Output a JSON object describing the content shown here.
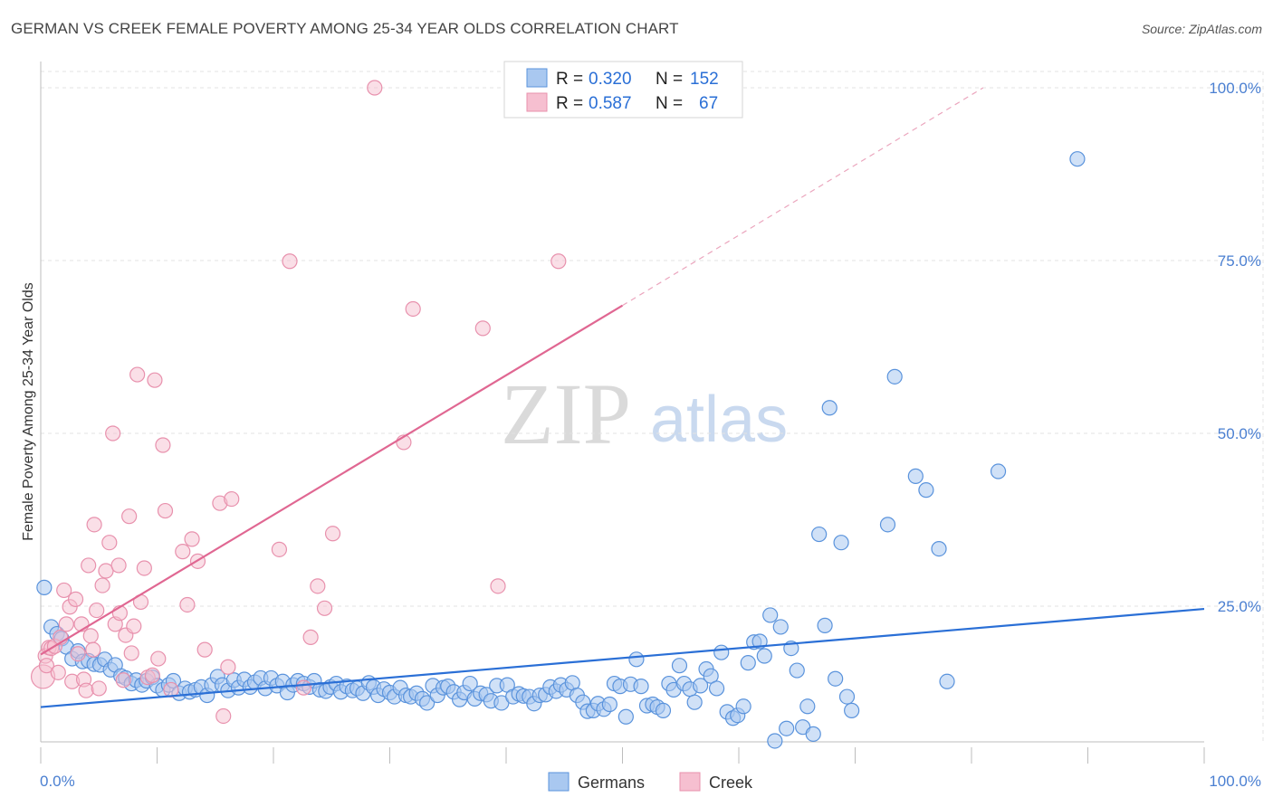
{
  "header": {
    "title": "GERMAN VS CREEK FEMALE POVERTY AMONG 25-34 YEAR OLDS CORRELATION CHART",
    "source": "Source: ZipAtlas.com"
  },
  "watermark": {
    "zip": "ZIP",
    "atlas": "atlas"
  },
  "colors": {
    "germans_fill": "#a9c8f0",
    "germans_stroke": "#5a93dc",
    "germans_line": "#2a6fd6",
    "creek_fill": "#f6bfd0",
    "creek_stroke": "#e891ad",
    "creek_line": "#e06792",
    "axis_text": "#4a7fd1",
    "grid": "#e3e3e3"
  },
  "legend": {
    "r_label": "R =",
    "n_label": "N =",
    "rows": [
      {
        "series": "Germans",
        "r": "0.320",
        "n": "152"
      },
      {
        "series": "Creek",
        "r": "0.587",
        "n": "67"
      }
    ]
  },
  "chart_data": {
    "type": "scatter",
    "title": "GERMAN VS CREEK FEMALE POVERTY AMONG 25-34 YEAR OLDS CORRELATION CHART",
    "xlabel": "",
    "ylabel": "Female Poverty Among 25-34 Year Olds",
    "xlim": [
      0,
      100
    ],
    "ylim": [
      0,
      100
    ],
    "x_tick_labels": [
      "0.0%",
      "100.0%"
    ],
    "y_tick_labels": [
      "25.0%",
      "50.0%",
      "75.0%",
      "100.0%"
    ],
    "y_ticks": [
      25,
      50,
      75,
      100
    ],
    "grid": true,
    "legend_position": "top-center",
    "series": [
      {
        "name": "Germans",
        "regression": {
          "x0": 0,
          "y0": 10.4,
          "x1": 100,
          "y1": 24.6
        },
        "points": [
          [
            0.3,
            27.7
          ],
          [
            0.9,
            22.0
          ],
          [
            1.4,
            21.0
          ],
          [
            1.8,
            20.3
          ],
          [
            2.2,
            19.1
          ],
          [
            2.7,
            17.4
          ],
          [
            3.2,
            18.5
          ],
          [
            3.6,
            17.0
          ],
          [
            4.1,
            17.1
          ],
          [
            4.6,
            16.6
          ],
          [
            5.1,
            16.5
          ],
          [
            5.5,
            17.3
          ],
          [
            6.0,
            15.8
          ],
          [
            6.4,
            16.5
          ],
          [
            6.9,
            14.9
          ],
          [
            7.3,
            14.6
          ],
          [
            7.8,
            13.8
          ],
          [
            8.2,
            14.3
          ],
          [
            8.7,
            13.6
          ],
          [
            9.1,
            14.2
          ],
          [
            9.6,
            14.7
          ],
          [
            10.0,
            13.5
          ],
          [
            10.5,
            12.9
          ],
          [
            11.0,
            13.6
          ],
          [
            11.4,
            14.2
          ],
          [
            11.9,
            12.4
          ],
          [
            12.4,
            13.1
          ],
          [
            12.8,
            12.6
          ],
          [
            13.3,
            12.9
          ],
          [
            13.8,
            13.3
          ],
          [
            14.3,
            12.1
          ],
          [
            14.7,
            13.6
          ],
          [
            15.2,
            14.8
          ],
          [
            15.6,
            13.6
          ],
          [
            16.1,
            12.8
          ],
          [
            16.6,
            14.3
          ],
          [
            17.0,
            13.2
          ],
          [
            17.5,
            14.4
          ],
          [
            18.0,
            13.3
          ],
          [
            18.4,
            14.0
          ],
          [
            18.9,
            14.6
          ],
          [
            19.3,
            13.1
          ],
          [
            19.8,
            14.6
          ],
          [
            20.3,
            13.5
          ],
          [
            20.8,
            14.1
          ],
          [
            21.2,
            12.5
          ],
          [
            21.7,
            13.6
          ],
          [
            22.1,
            14.2
          ],
          [
            22.6,
            13.8
          ],
          [
            23.1,
            13.3
          ],
          [
            23.5,
            14.2
          ],
          [
            24.0,
            12.9
          ],
          [
            24.5,
            12.7
          ],
          [
            24.9,
            13.3
          ],
          [
            25.4,
            13.8
          ],
          [
            25.8,
            12.6
          ],
          [
            26.3,
            13.4
          ],
          [
            26.8,
            12.8
          ],
          [
            27.2,
            13.1
          ],
          [
            27.7,
            12.4
          ],
          [
            28.2,
            13.9
          ],
          [
            28.6,
            13.3
          ],
          [
            29.0,
            12.1
          ],
          [
            29.5,
            13.0
          ],
          [
            30.0,
            12.5
          ],
          [
            30.4,
            11.9
          ],
          [
            30.9,
            13.2
          ],
          [
            31.4,
            12.1
          ],
          [
            31.8,
            11.9
          ],
          [
            32.3,
            12.4
          ],
          [
            32.8,
            11.6
          ],
          [
            33.2,
            11.0
          ],
          [
            33.7,
            13.5
          ],
          [
            34.1,
            12.1
          ],
          [
            34.6,
            13.2
          ],
          [
            35.0,
            13.4
          ],
          [
            35.5,
            12.6
          ],
          [
            36.0,
            11.5
          ],
          [
            36.4,
            12.5
          ],
          [
            36.9,
            13.8
          ],
          [
            37.3,
            11.6
          ],
          [
            37.8,
            12.4
          ],
          [
            38.3,
            12.2
          ],
          [
            38.7,
            11.3
          ],
          [
            39.2,
            13.5
          ],
          [
            39.6,
            11.0
          ],
          [
            40.1,
            13.6
          ],
          [
            40.6,
            11.9
          ],
          [
            41.1,
            12.3
          ],
          [
            41.5,
            12.0
          ],
          [
            42.0,
            11.9
          ],
          [
            42.4,
            10.9
          ],
          [
            42.9,
            12.1
          ],
          [
            43.4,
            12.2
          ],
          [
            43.8,
            13.3
          ],
          [
            44.3,
            12.7
          ],
          [
            44.7,
            13.6
          ],
          [
            45.2,
            12.9
          ],
          [
            45.7,
            13.9
          ],
          [
            46.1,
            12.1
          ],
          [
            46.6,
            11.1
          ],
          [
            47.0,
            9.8
          ],
          [
            47.5,
            9.9
          ],
          [
            47.9,
            10.9
          ],
          [
            48.4,
            10.1
          ],
          [
            48.9,
            10.8
          ],
          [
            49.3,
            13.8
          ],
          [
            49.8,
            13.4
          ],
          [
            50.3,
            9.0
          ],
          [
            50.7,
            13.7
          ],
          [
            51.2,
            17.3
          ],
          [
            51.6,
            13.4
          ],
          [
            52.1,
            10.6
          ],
          [
            52.6,
            10.8
          ],
          [
            53.0,
            10.4
          ],
          [
            53.5,
            9.9
          ],
          [
            54.0,
            13.8
          ],
          [
            54.4,
            12.9
          ],
          [
            54.9,
            16.4
          ],
          [
            55.3,
            13.8
          ],
          [
            55.8,
            13.0
          ],
          [
            56.2,
            11.1
          ],
          [
            56.7,
            13.5
          ],
          [
            57.2,
            15.9
          ],
          [
            57.6,
            14.9
          ],
          [
            58.1,
            13.1
          ],
          [
            58.5,
            18.3
          ],
          [
            59.0,
            9.7
          ],
          [
            59.5,
            8.8
          ],
          [
            59.9,
            9.2
          ],
          [
            60.4,
            10.5
          ],
          [
            60.8,
            16.8
          ],
          [
            61.3,
            19.8
          ],
          [
            61.8,
            19.9
          ],
          [
            62.2,
            17.8
          ],
          [
            62.7,
            23.7
          ],
          [
            63.1,
            5.5
          ],
          [
            63.6,
            22.0
          ],
          [
            64.1,
            7.3
          ],
          [
            64.5,
            18.9
          ],
          [
            65.0,
            15.7
          ],
          [
            65.5,
            7.5
          ],
          [
            65.9,
            10.5
          ],
          [
            66.4,
            6.5
          ],
          [
            66.9,
            35.4
          ],
          [
            67.4,
            22.2
          ],
          [
            67.8,
            53.7
          ],
          [
            68.3,
            14.5
          ],
          [
            68.8,
            34.2
          ],
          [
            69.3,
            11.9
          ],
          [
            69.7,
            9.9
          ],
          [
            72.8,
            36.8
          ],
          [
            73.4,
            58.2
          ],
          [
            75.2,
            43.8
          ],
          [
            76.1,
            41.8
          ],
          [
            77.2,
            33.3
          ],
          [
            77.9,
            14.1
          ],
          [
            82.3,
            44.5
          ],
          [
            89.1,
            89.7
          ]
        ]
      },
      {
        "name": "Creek",
        "regression": {
          "x0": 0,
          "y0": 18.0,
          "x1": 50,
          "y1": 68.5,
          "dash_x1": 81,
          "dash_y1": 100
        },
        "points": [
          [
            0.2,
            14.8
          ],
          [
            0.4,
            17.8
          ],
          [
            0.5,
            16.4
          ],
          [
            0.7,
            19.0
          ],
          [
            0.9,
            18.9
          ],
          [
            1.2,
            19.2
          ],
          [
            1.5,
            15.4
          ],
          [
            1.7,
            20.5
          ],
          [
            2.0,
            27.3
          ],
          [
            2.2,
            22.4
          ],
          [
            2.5,
            24.9
          ],
          [
            2.7,
            14.1
          ],
          [
            3.0,
            26.0
          ],
          [
            3.2,
            18.1
          ],
          [
            3.5,
            22.4
          ],
          [
            3.7,
            14.4
          ],
          [
            3.9,
            12.8
          ],
          [
            4.1,
            30.9
          ],
          [
            4.3,
            20.7
          ],
          [
            4.5,
            18.7
          ],
          [
            4.6,
            36.8
          ],
          [
            4.8,
            24.4
          ],
          [
            5.0,
            13.1
          ],
          [
            5.3,
            28.0
          ],
          [
            5.6,
            30.1
          ],
          [
            5.9,
            34.2
          ],
          [
            6.2,
            50.0
          ],
          [
            6.4,
            22.4
          ],
          [
            6.7,
            30.9
          ],
          [
            6.8,
            24.0
          ],
          [
            7.1,
            14.3
          ],
          [
            7.3,
            20.8
          ],
          [
            7.6,
            38.0
          ],
          [
            7.8,
            18.2
          ],
          [
            8.0,
            22.1
          ],
          [
            8.3,
            58.5
          ],
          [
            8.6,
            25.6
          ],
          [
            8.9,
            30.5
          ],
          [
            9.2,
            14.7
          ],
          [
            9.6,
            15.0
          ],
          [
            9.8,
            57.7
          ],
          [
            10.1,
            17.4
          ],
          [
            10.5,
            48.3
          ],
          [
            10.7,
            38.8
          ],
          [
            11.2,
            12.9
          ],
          [
            12.2,
            32.9
          ],
          [
            12.6,
            25.2
          ],
          [
            13.0,
            34.7
          ],
          [
            13.5,
            31.5
          ],
          [
            14.1,
            18.7
          ],
          [
            15.4,
            39.9
          ],
          [
            15.7,
            9.1
          ],
          [
            16.1,
            16.2
          ],
          [
            16.4,
            40.5
          ],
          [
            20.5,
            33.2
          ],
          [
            21.4,
            74.9
          ],
          [
            22.6,
            13.2
          ],
          [
            23.2,
            20.5
          ],
          [
            23.8,
            27.9
          ],
          [
            24.4,
            24.7
          ],
          [
            25.1,
            35.5
          ],
          [
            28.7,
            100.0
          ],
          [
            31.2,
            48.7
          ],
          [
            32.0,
            68.0
          ],
          [
            38.0,
            65.2
          ],
          [
            39.3,
            27.9
          ],
          [
            44.5,
            74.9
          ]
        ]
      }
    ]
  }
}
